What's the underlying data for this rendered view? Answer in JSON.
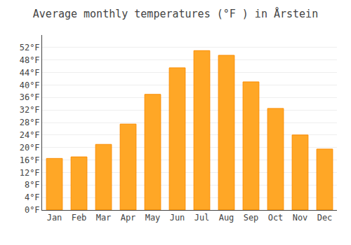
{
  "chart_data": {
    "type": "bar",
    "title": "Average monthly temperatures (°F ) in Årstein",
    "categories": [
      "Jan",
      "Feb",
      "Mar",
      "Apr",
      "May",
      "Jun",
      "Jul",
      "Aug",
      "Sep",
      "Oct",
      "Nov",
      "Dec"
    ],
    "values": [
      16.5,
      17.0,
      21.0,
      27.5,
      37.0,
      45.5,
      51.0,
      49.5,
      41.0,
      32.5,
      24.0,
      19.5
    ],
    "color": "#FFA726",
    "ylim": [
      0,
      56
    ],
    "yticks": [
      {
        "value": 0,
        "label": "0°F"
      },
      {
        "value": 4,
        "label": "4°F"
      },
      {
        "value": 8,
        "label": "8°F"
      },
      {
        "value": 12,
        "label": "12°F"
      },
      {
        "value": 16,
        "label": "16°F"
      },
      {
        "value": 20,
        "label": "20°F"
      },
      {
        "value": 24,
        "label": "24°F"
      },
      {
        "value": 28,
        "label": "28°F"
      },
      {
        "value": 32,
        "label": "32°F"
      },
      {
        "value": 36,
        "label": "36°F"
      },
      {
        "value": 40,
        "label": "40°F"
      },
      {
        "value": 44,
        "label": "44°F"
      },
      {
        "value": 48,
        "label": "48°F"
      },
      {
        "value": 52,
        "label": "52°F"
      }
    ],
    "grid": true
  }
}
